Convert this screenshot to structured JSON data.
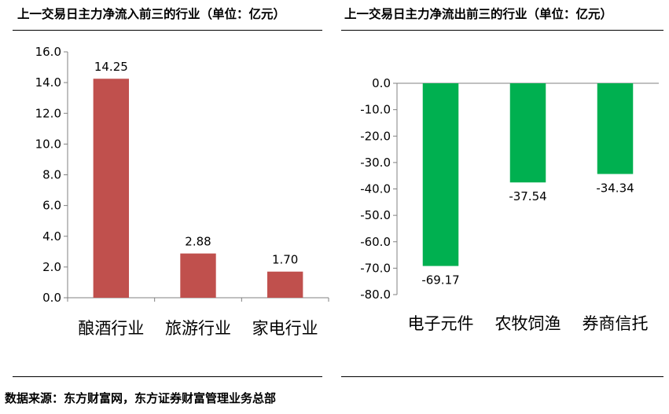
{
  "chart_data": [
    {
      "type": "bar",
      "title": "上一交易日主力净流入前三的行业（单位：亿元）",
      "categories": [
        "酿酒行业",
        "旅游行业",
        "家电行业"
      ],
      "values": [
        14.25,
        2.88,
        1.7
      ],
      "value_labels": [
        "14.25",
        "2.88",
        "1.70"
      ],
      "ylim": [
        0,
        16
      ],
      "yticks": [
        "0.0",
        "2.0",
        "4.0",
        "6.0",
        "8.0",
        "10.0",
        "12.0",
        "14.0",
        "16.0"
      ],
      "grid": false,
      "bar_color": "#c0504d"
    },
    {
      "type": "bar",
      "title": "上一交易日主力净流出前三的行业（单位：亿元）",
      "categories": [
        "电子元件",
        "农牧饲渔",
        "券商信托"
      ],
      "values": [
        -69.17,
        -37.54,
        -34.34
      ],
      "value_labels": [
        "-69.17",
        "-37.54",
        "-34.34"
      ],
      "ylim": [
        -80,
        0
      ],
      "yticks": [
        "0.0",
        "-10.0",
        "-20.0",
        "-30.0",
        "-40.0",
        "-50.0",
        "-60.0",
        "-70.0",
        "-80.0"
      ],
      "grid": false,
      "bar_color": "#00b050"
    }
  ],
  "source": "数据来源：东方财富网，东方证券财富管理业务总部"
}
